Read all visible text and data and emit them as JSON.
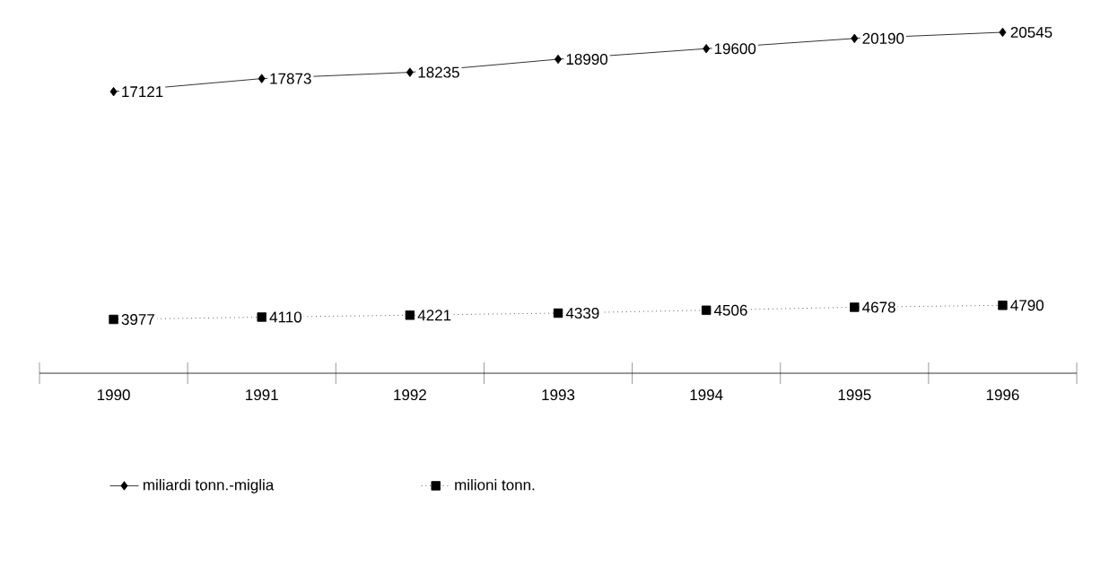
{
  "chart_data": {
    "type": "line",
    "categories": [
      "1990",
      "1991",
      "1992",
      "1993",
      "1994",
      "1995",
      "1996"
    ],
    "series": [
      {
        "name": "miliardi tonn.-miglia",
        "color": "#000000",
        "marker": "diamond",
        "line_style": "solid",
        "values": [
          17121,
          17873,
          18235,
          18990,
          19600,
          20190,
          20545
        ]
      },
      {
        "name": "milioni tonn.",
        "color": "#000000",
        "marker": "square",
        "line_style": "dotted",
        "values": [
          3977,
          4110,
          4221,
          4339,
          4506,
          4678,
          4790
        ]
      }
    ],
    "data_labels": true,
    "legend": "bottom",
    "grid": false,
    "tick_labels": "x"
  }
}
